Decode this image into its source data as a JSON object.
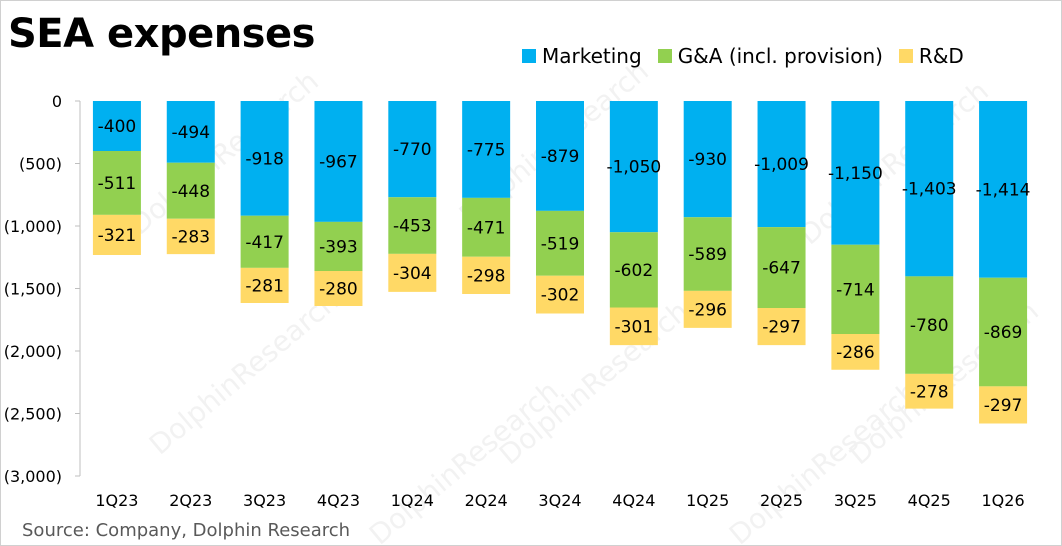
{
  "title": "SEA expenses",
  "source": "Source: Company, Dolphin Research",
  "watermark": "DolphinResearch",
  "chart_data": {
    "type": "bar",
    "stacked": true,
    "categories": [
      "1Q23",
      "2Q23",
      "3Q23",
      "4Q23",
      "1Q24",
      "2Q24",
      "3Q24",
      "4Q24",
      "1Q25",
      "2Q25",
      "3Q25",
      "4Q25",
      "1Q26"
    ],
    "series": [
      {
        "name": "Marketing",
        "color": "#00b0f0",
        "values": [
          -400,
          -494,
          -918,
          -967,
          -770,
          -775,
          -879,
          -1050,
          -930,
          -1009,
          -1150,
          -1403,
          -1414
        ],
        "labels": [
          "-400",
          "-494",
          "-918",
          "-967",
          "-770",
          "-775",
          "-879",
          "-1,050",
          "-930",
          "-1,009",
          "-1,150",
          "-1,403",
          "-1,414"
        ]
      },
      {
        "name": "G&A (incl. provision)",
        "color": "#92d050",
        "values": [
          -511,
          -448,
          -417,
          -393,
          -453,
          -471,
          -519,
          -602,
          -589,
          -647,
          -714,
          -780,
          -869
        ],
        "labels": [
          "-511",
          "-448",
          "-417",
          "-393",
          "-453",
          "-471",
          "-519",
          "-602",
          "-589",
          "-647",
          "-714",
          "-780",
          "-869"
        ]
      },
      {
        "name": "R&D",
        "color": "#ffd966",
        "values": [
          -321,
          -283,
          -281,
          -280,
          -304,
          -298,
          -302,
          -301,
          -296,
          -297,
          -286,
          -278,
          -297
        ],
        "labels": [
          "-321",
          "-283",
          "-281",
          "-280",
          "-304",
          "-298",
          "-302",
          "-301",
          "-296",
          "-297",
          "-286",
          "-278",
          "-297"
        ]
      }
    ],
    "ylim": [
      -3000,
      0
    ],
    "yticks": [
      0,
      -500,
      -1000,
      -1500,
      -2000,
      -2500,
      -3000
    ],
    "ytick_labels": [
      "0",
      "(500)",
      "(1,000)",
      "(1,500)",
      "(2,000)",
      "(2,500)",
      "(3,000)"
    ],
    "grid": false,
    "legend_position": "top-right"
  }
}
